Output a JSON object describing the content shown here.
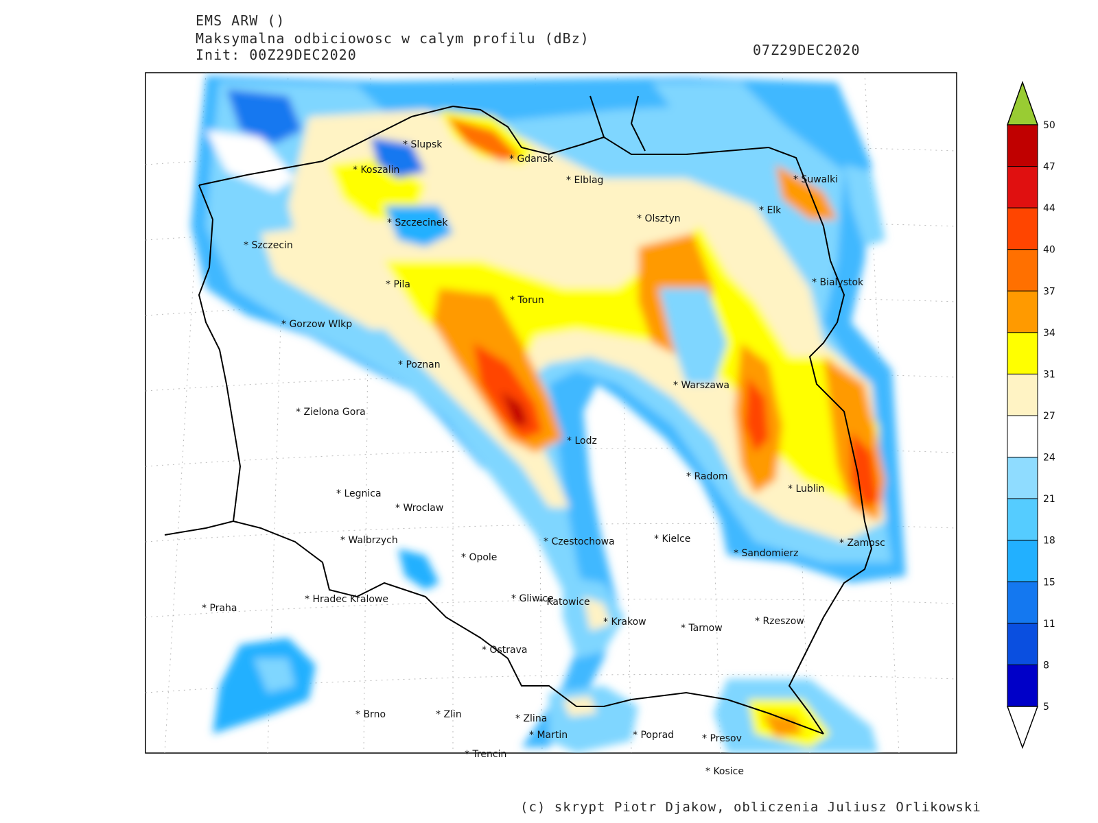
{
  "header": {
    "model": "EMS ARW ()",
    "field": "Maksymalna odbiciowosc w calym profilu (dBz)",
    "init": "Init: 00Z29DEC2020",
    "valid": "07Z29DEC2020"
  },
  "credit": "(c) skrypt Piotr Djakow, obliczenia Juliusz Orlikowski",
  "colorbar": {
    "ticks": [
      "50",
      "47",
      "44",
      "40",
      "37",
      "34",
      "31",
      "27",
      "24",
      "21",
      "18",
      "15",
      "11",
      "8",
      "5"
    ],
    "colors": [
      "#c00000",
      "#e01010",
      "#ff4500",
      "#ff7000",
      "#ff9a00",
      "#ffff00",
      "#fff3c4",
      "#ffffff",
      "#8fdcff",
      "#55ccff",
      "#22b0ff",
      "#1478f0",
      "#0a4fe0",
      "#0000c8"
    ],
    "top_color": "#99cc33"
  },
  "cities": [
    {
      "name": "Slupsk"
    },
    {
      "name": "Gdansk"
    },
    {
      "name": "Koszalin"
    },
    {
      "name": "Elblag"
    },
    {
      "name": "Suwalki"
    },
    {
      "name": "Elk"
    },
    {
      "name": "Szczecinek"
    },
    {
      "name": "Olsztyn"
    },
    {
      "name": "Szczecin"
    },
    {
      "name": "Bialystok"
    },
    {
      "name": "Pila"
    },
    {
      "name": "Torun"
    },
    {
      "name": "Gorzow Wlkp"
    },
    {
      "name": "Poznan"
    },
    {
      "name": "Warszawa"
    },
    {
      "name": "Zielona Gora"
    },
    {
      "name": "Lodz"
    },
    {
      "name": "Radom"
    },
    {
      "name": "Lublin"
    },
    {
      "name": "Legnica"
    },
    {
      "name": "Wroclaw"
    },
    {
      "name": "Walbrzych"
    },
    {
      "name": "Czestochowa"
    },
    {
      "name": "Kielce"
    },
    {
      "name": "Zamosc"
    },
    {
      "name": "Opole"
    },
    {
      "name": "Sandomierz"
    },
    {
      "name": "Praha"
    },
    {
      "name": "Hradec Kralowe"
    },
    {
      "name": "Gliwice"
    },
    {
      "name": "Katowice"
    },
    {
      "name": "Krakow"
    },
    {
      "name": "Tarnow"
    },
    {
      "name": "Rzeszow"
    },
    {
      "name": "Ostrava"
    },
    {
      "name": "Brno"
    },
    {
      "name": "Zlin"
    },
    {
      "name": "Zlina"
    },
    {
      "name": "Martin"
    },
    {
      "name": "Poprad"
    },
    {
      "name": "Presov"
    },
    {
      "name": "Trencin"
    },
    {
      "name": "Kosice"
    }
  ]
}
